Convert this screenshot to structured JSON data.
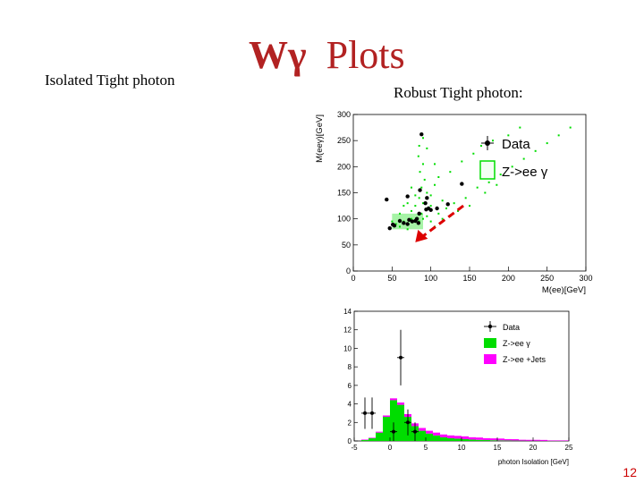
{
  "slide": {
    "title_symbol": "Wγ",
    "title_text": "Plots",
    "left_label": "Isolated Tight photon",
    "right_label": "Robust Tight photon:",
    "page_number": "12"
  },
  "colors": {
    "title": "#b22222",
    "mc_green": "#00dd00",
    "mc_magenta": "#ff00ff",
    "arrow": "#dd0000",
    "data": "#000000",
    "page_number": "#cc0000"
  },
  "chart_data": [
    {
      "type": "scatter",
      "xlabel": "M(ee)[GeV]",
      "ylabel": "M(eeγ)[GeV]",
      "xlim": [
        0,
        300
      ],
      "ylim": [
        0,
        300
      ],
      "xticks": [
        "0",
        "50",
        "100",
        "150",
        "200",
        "250",
        "300"
      ],
      "yticks": [
        "0",
        "50",
        "100",
        "150",
        "200",
        "250",
        "300"
      ],
      "legend": [
        {
          "label": "Data",
          "kind": "marker"
        },
        {
          "label": "Z->ee γ",
          "kind": "box"
        }
      ],
      "legend_position": "top-right",
      "series": [
        {
          "name": "Data",
          "points": [
            [
              88,
              262
            ],
            [
              43,
              137
            ],
            [
              70,
              143
            ],
            [
              86,
              155
            ],
            [
              93,
              130
            ],
            [
              95,
              140
            ],
            [
              97,
              120
            ],
            [
              94,
              118
            ],
            [
              100,
              117
            ],
            [
              108,
              120
            ],
            [
              122,
              128
            ],
            [
              140,
              167
            ],
            [
              60,
              96
            ],
            [
              65,
              92
            ],
            [
              70,
              90
            ],
            [
              72,
              98
            ],
            [
              76,
              95
            ],
            [
              80,
              96
            ],
            [
              82,
              100
            ],
            [
              84,
              92
            ],
            [
              47,
              82
            ],
            [
              53,
              87
            ],
            [
              51,
              89
            ],
            [
              85,
              110
            ]
          ]
        },
        {
          "name": "Z->ee γ",
          "points": [
            [
              55,
              90
            ],
            [
              65,
              95
            ],
            [
              75,
              100
            ],
            [
              85,
              95
            ],
            [
              90,
              100
            ],
            [
              95,
              105
            ],
            [
              88,
              110
            ],
            [
              80,
              125
            ],
            [
              90,
              130
            ],
            [
              85,
              140
            ],
            [
              95,
              150
            ],
            [
              88,
              160
            ],
            [
              92,
              175
            ],
            [
              86,
              190
            ],
            [
              90,
              205
            ],
            [
              84,
              220
            ],
            [
              95,
              235
            ],
            [
              90,
              255
            ],
            [
              110,
              110
            ],
            [
              120,
              120
            ],
            [
              130,
              130
            ],
            [
              145,
              140
            ],
            [
              160,
              160
            ],
            [
              175,
              170
            ],
            [
              190,
              185
            ],
            [
              205,
              200
            ],
            [
              220,
              215
            ],
            [
              235,
              230
            ],
            [
              250,
              245
            ],
            [
              265,
              260
            ],
            [
              280,
              275
            ],
            [
              70,
              80
            ],
            [
              60,
              85
            ],
            [
              50,
              95
            ],
            [
              100,
              95
            ],
            [
              100,
              125
            ],
            [
              115,
              135
            ],
            [
              75,
              115
            ],
            [
              70,
              130
            ],
            [
              105,
              165
            ],
            [
              110,
              180
            ],
            [
              125,
              190
            ],
            [
              140,
              210
            ],
            [
              155,
              225
            ],
            [
              165,
              240
            ],
            [
              180,
              250
            ],
            [
              200,
              260
            ],
            [
              215,
              275
            ],
            [
              60,
              110
            ],
            [
              65,
              125
            ],
            [
              105,
              85
            ],
            [
              115,
              100
            ],
            [
              125,
              105
            ],
            [
              135,
              115
            ],
            [
              150,
              125
            ],
            [
              170,
              150
            ],
            [
              185,
              165
            ],
            [
              80,
              145
            ],
            [
              75,
              160
            ],
            [
              100,
              145
            ],
            [
              105,
              205
            ],
            [
              85,
              240
            ]
          ]
        }
      ],
      "annotation": "arrow"
    },
    {
      "type": "bar",
      "xlabel": "photon Isolation [GeV]",
      "ylabel": "",
      "xlim": [
        -5,
        25
      ],
      "ylim": [
        0,
        14
      ],
      "xticks": [
        "-5",
        "0",
        "5",
        "10",
        "15",
        "20",
        "25"
      ],
      "yticks": [
        "0",
        "2",
        "4",
        "6",
        "8",
        "10",
        "12",
        "14"
      ],
      "legend": [
        {
          "label": "Data",
          "kind": "marker"
        },
        {
          "label": "Z->ee γ",
          "kind": "box"
        },
        {
          "label": "Z->ee +Jets",
          "kind": "box"
        }
      ],
      "legend_position": "top-right",
      "bin_width": 1,
      "bin_starts": [
        -4,
        -3,
        -2,
        -1,
        0,
        1,
        2,
        3,
        4,
        5,
        6,
        7,
        8,
        9,
        10,
        11,
        12,
        13,
        14,
        15,
        16,
        17,
        18,
        19,
        20,
        21,
        22,
        23,
        24
      ],
      "series": [
        {
          "name": "Z->ee γ",
          "values": [
            0.1,
            0.3,
            0.9,
            2.6,
            4.4,
            3.9,
            2.6,
            1.6,
            1.1,
            0.8,
            0.6,
            0.4,
            0.3,
            0.25,
            0.2,
            0.15,
            0.12,
            0.1,
            0.08,
            0.06,
            0.05,
            0.04,
            0.03,
            0.02,
            0.02,
            0.01,
            0.01,
            0.01,
            0.01
          ]
        },
        {
          "name": "Z->ee +Jets",
          "values": [
            0.05,
            0.05,
            0.1,
            0.15,
            0.2,
            0.25,
            0.3,
            0.3,
            0.3,
            0.3,
            0.3,
            0.3,
            0.3,
            0.3,
            0.3,
            0.25,
            0.25,
            0.2,
            0.2,
            0.2,
            0.15,
            0.15,
            0.1,
            0.1,
            0.1,
            0.1,
            0.05,
            0.05,
            0.05
          ]
        },
        {
          "name": "Data",
          "points": [
            {
              "x": -3.5,
              "y": 3,
              "err": 1.7
            },
            {
              "x": -2.5,
              "y": 3,
              "err": 1.7
            },
            {
              "x": 0.5,
              "y": 1,
              "err": 1
            },
            {
              "x": 1.5,
              "y": 9,
              "err": 3
            },
            {
              "x": 2.5,
              "y": 2,
              "err": 1.4
            },
            {
              "x": 3.5,
              "y": 1,
              "err": 1
            }
          ]
        }
      ]
    }
  ]
}
